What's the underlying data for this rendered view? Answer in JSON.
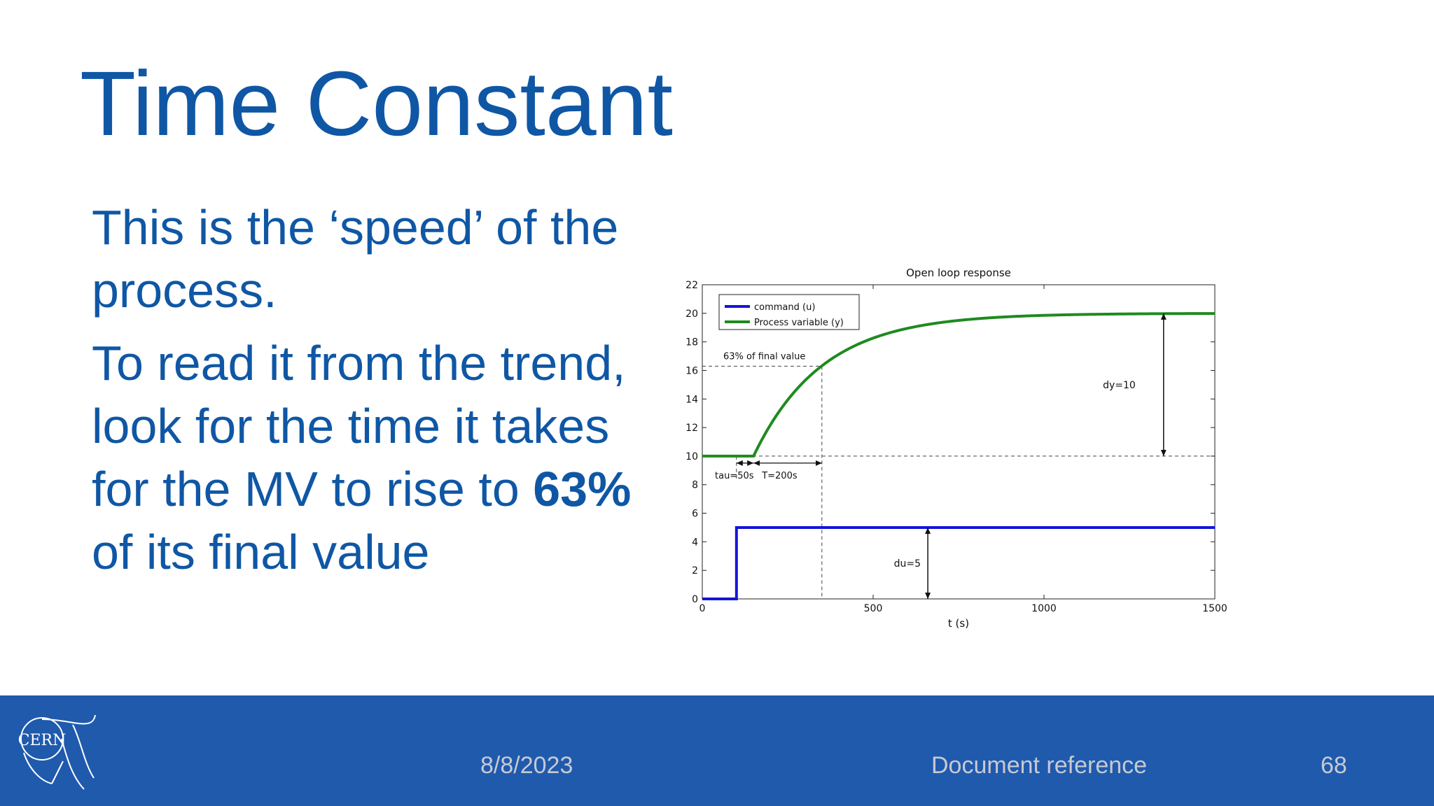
{
  "slide": {
    "title": "Time Constant",
    "body": {
      "para1": "This is the ‘speed’ of the process.",
      "para2_before_bold": "To read it from the trend, look for the time it takes for the MV to rise to ",
      "para2_bold": "63%",
      "para2_after_bold": " of its final value"
    }
  },
  "footer": {
    "logo_text": "CERN",
    "date": "8/8/2023",
    "doc_ref": "Document reference",
    "page_number": "68"
  },
  "colors": {
    "title": "#0f57a5",
    "footer_bg": "#1f5aad",
    "footer_text": "#c7c9d2",
    "command_series": "#1515d8",
    "process_series": "#1f8a1f"
  },
  "chart_data": {
    "type": "line",
    "title": "Open loop response",
    "xlabel": "t (s)",
    "ylabel": "",
    "xlim": [
      0,
      1500
    ],
    "ylim": [
      0,
      22
    ],
    "x_ticks": [
      0,
      500,
      1000,
      1500
    ],
    "y_ticks": [
      0,
      2,
      4,
      6,
      8,
      10,
      12,
      14,
      16,
      18,
      20,
      22
    ],
    "grid": false,
    "legend_position": "top-left",
    "series": [
      {
        "name": "command (u)",
        "color": "#1515d8",
        "x": [
          0,
          100,
          100,
          1500
        ],
        "y": [
          0,
          0,
          5,
          5
        ]
      },
      {
        "name": "Process variable (y)",
        "color": "#1f8a1f",
        "model": {
          "y0": 10,
          "dy": 10,
          "step_time": 100,
          "dead_time": 50,
          "time_constant": 200
        },
        "x": [
          0,
          150,
          200,
          250,
          300,
          350,
          400,
          500,
          600,
          700,
          800,
          900,
          1000,
          1200,
          1500
        ],
        "y": [
          10,
          10,
          12.21,
          13.93,
          15.28,
          16.32,
          17.14,
          18.26,
          18.95,
          19.37,
          19.62,
          19.77,
          19.86,
          19.95,
          19.99
        ]
      }
    ],
    "annotations": {
      "final_value_label": "63% of final value",
      "final_value_level": 16.3,
      "tau_label": "tau=50s",
      "tau_interval": [
        100,
        150
      ],
      "T_label": "T=200s",
      "T_interval": [
        150,
        350
      ],
      "dy_label": "dy=10",
      "dy_x": 1350,
      "dy_range": [
        10,
        20
      ],
      "du_label": "du=5",
      "du_x": 660,
      "du_range": [
        0,
        5
      ],
      "baseline_level": 10
    }
  }
}
